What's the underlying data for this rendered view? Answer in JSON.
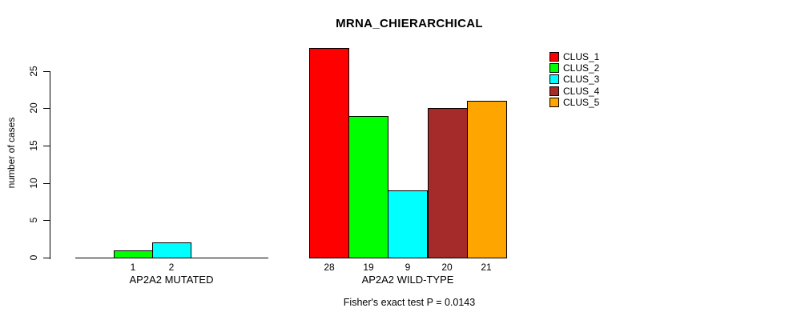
{
  "title": "MRNA_CHIERARCHICAL",
  "y_axis": {
    "label": "number of cases",
    "ticks": [
      0,
      5,
      10,
      15,
      20,
      25
    ]
  },
  "footer": "Fisher's exact test P = 0.0143",
  "colors": [
    "#FF0000",
    "#00FF00",
    "#00FFFF",
    "#A52A2A",
    "#FFA500"
  ],
  "legend": {
    "items": [
      {
        "label": "CLUS_1",
        "color": "#FF0000"
      },
      {
        "label": "CLUS_2",
        "color": "#00FF00"
      },
      {
        "label": "CLUS_3",
        "color": "#00FFFF"
      },
      {
        "label": "CLUS_4",
        "color": "#A52A2A"
      },
      {
        "label": "CLUS_5",
        "color": "#FFA500"
      }
    ]
  },
  "groups": [
    {
      "label": "AP2A2 MUTATED",
      "clusters": [
        "CLUS_1",
        "CLUS_2",
        "CLUS_3",
        "CLUS_4",
        "CLUS_5"
      ],
      "values": [
        0,
        1,
        2,
        0,
        0
      ],
      "bar_labels": [
        "",
        "1",
        "2",
        "",
        ""
      ]
    },
    {
      "label": "AP2A2 WILD-TYPE",
      "clusters": [
        "CLUS_1",
        "CLUS_2",
        "CLUS_3",
        "CLUS_4",
        "CLUS_5"
      ],
      "values": [
        28,
        19,
        9,
        20,
        21
      ],
      "bar_labels": [
        "28",
        "19",
        "9",
        "20",
        "21"
      ]
    }
  ],
  "chart_data": {
    "type": "bar",
    "title": "MRNA_CHIERARCHICAL",
    "xlabel": "",
    "ylabel": "number of cases",
    "ylim": [
      0,
      28
    ],
    "yticks": [
      0,
      5,
      10,
      15,
      20,
      25
    ],
    "grid": false,
    "legend_position": "top-right",
    "categories": [
      "AP2A2 MUTATED",
      "AP2A2 WILD-TYPE"
    ],
    "series": [
      {
        "name": "CLUS_1",
        "color": "#FF0000",
        "values": [
          0,
          28
        ]
      },
      {
        "name": "CLUS_2",
        "color": "#00FF00",
        "values": [
          1,
          19
        ]
      },
      {
        "name": "CLUS_3",
        "color": "#00FFFF",
        "values": [
          2,
          9
        ]
      },
      {
        "name": "CLUS_4",
        "color": "#A52A2A",
        "values": [
          0,
          20
        ]
      },
      {
        "name": "CLUS_5",
        "color": "#FFA500",
        "values": [
          0,
          21
        ]
      }
    ],
    "annotation": "Fisher's exact test P = 0.0143"
  }
}
